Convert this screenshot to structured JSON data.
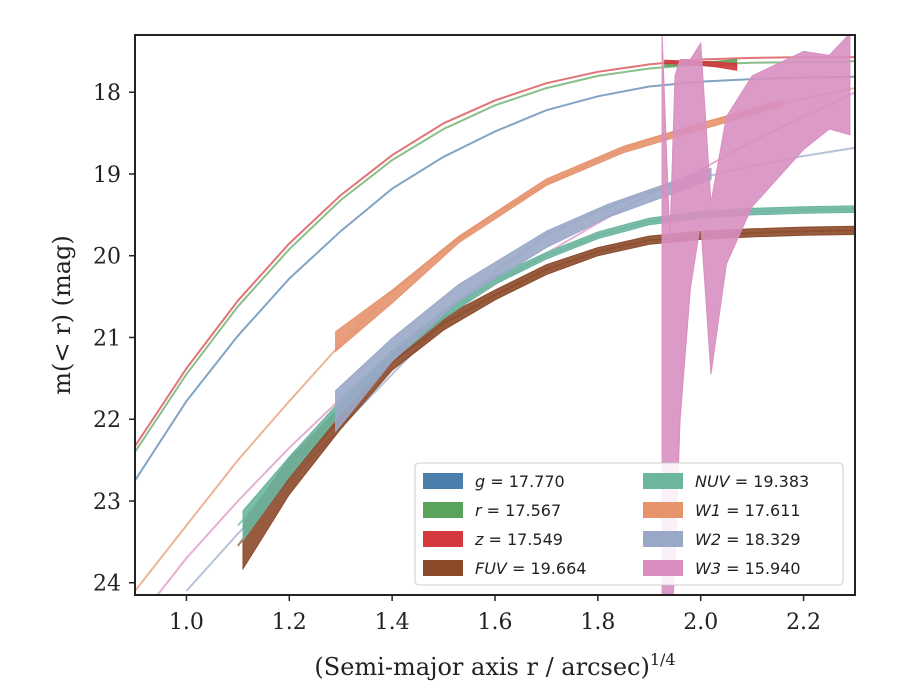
{
  "chart_data": {
    "type": "line",
    "title": "",
    "xlabel_text": "(Semi-major axis r / arcsec)",
    "xlabel_exp": "1/4",
    "ylabel_text": "m(< r) (mag)",
    "xlim": [
      0.9,
      2.3
    ],
    "ylim": [
      24.15,
      17.3
    ],
    "y_inverted": true,
    "grid": false,
    "legend_position": "lower-right",
    "xticks": [
      1.0,
      1.2,
      1.4,
      1.6,
      1.8,
      2.0,
      2.2
    ],
    "xtick_labels": [
      "1.0",
      "1.2",
      "1.4",
      "1.6",
      "1.8",
      "2.0",
      "2.2"
    ],
    "yticks": [
      18,
      19,
      20,
      21,
      22,
      23,
      24
    ],
    "ytick_labels": [
      "18",
      "19",
      "20",
      "21",
      "22",
      "23",
      "24"
    ],
    "series": [
      {
        "name": "g = 17.770",
        "color": "#4c7eab",
        "model": {
          "x": [
            0.9,
            1.0,
            1.1,
            1.2,
            1.3,
            1.4,
            1.5,
            1.6,
            1.7,
            1.8,
            1.9,
            2.0,
            2.1,
            2.2,
            2.3
          ],
          "y": [
            22.75,
            21.78,
            20.98,
            20.28,
            19.7,
            19.18,
            18.79,
            18.48,
            18.22,
            18.05,
            17.93,
            17.87,
            17.84,
            17.82,
            17.81
          ]
        },
        "data": null
      },
      {
        "name": "r = 17.567",
        "color": "#5aa35a",
        "model": {
          "x": [
            0.9,
            1.0,
            1.1,
            1.2,
            1.3,
            1.4,
            1.5,
            1.6,
            1.7,
            1.8,
            1.9,
            2.0,
            2.1,
            2.2,
            2.3
          ],
          "y": [
            22.4,
            21.45,
            20.62,
            19.92,
            19.32,
            18.83,
            18.45,
            18.16,
            17.95,
            17.8,
            17.71,
            17.66,
            17.64,
            17.63,
            17.62
          ]
        },
        "data": {
          "x": [
            1.93,
            1.98,
            2.03,
            2.07
          ],
          "y": [
            17.66,
            17.65,
            17.65,
            17.64
          ],
          "halfwidth": [
            0.02,
            0.02,
            0.03,
            0.04
          ]
        }
      },
      {
        "name": "z = 17.549",
        "color": "#d4393d",
        "model": {
          "x": [
            0.9,
            1.0,
            1.1,
            1.2,
            1.3,
            1.4,
            1.5,
            1.6,
            1.7,
            1.8,
            1.9,
            2.0,
            2.1,
            2.2,
            2.3
          ],
          "y": [
            22.33,
            21.38,
            20.55,
            19.85,
            19.26,
            18.77,
            18.38,
            18.1,
            17.89,
            17.75,
            17.66,
            17.6,
            17.58,
            17.57,
            17.57
          ]
        },
        "data": {
          "x": [
            1.93,
            1.98,
            2.03,
            2.07
          ],
          "y": [
            17.63,
            17.64,
            17.66,
            17.69
          ],
          "halfwidth": [
            0.02,
            0.02,
            0.03,
            0.04
          ]
        }
      },
      {
        "name": "FUV = 19.664",
        "color": "#8c4a2a",
        "model": {
          "x": [
            1.1,
            1.2,
            1.3,
            1.4,
            1.5,
            1.6,
            1.7,
            1.8,
            1.9,
            2.0,
            2.1,
            2.2,
            2.3
          ],
          "y": [
            23.55,
            22.7,
            21.98,
            21.3,
            20.83,
            20.48,
            20.17,
            19.95,
            19.81,
            19.75,
            19.72,
            19.7,
            19.69
          ]
        },
        "data": {
          "x": [
            1.11,
            1.2,
            1.3,
            1.4,
            1.5,
            1.6,
            1.7,
            1.8,
            1.9,
            2.0,
            2.1,
            2.2,
            2.3
          ],
          "y": [
            23.55,
            22.7,
            21.98,
            21.3,
            20.83,
            20.48,
            20.17,
            19.95,
            19.81,
            19.75,
            19.72,
            19.7,
            19.69
          ],
          "halfwidth": [
            0.28,
            0.22,
            0.14,
            0.1,
            0.08,
            0.06,
            0.06,
            0.05,
            0.05,
            0.05,
            0.05,
            0.05,
            0.05
          ]
        }
      },
      {
        "name": "NUV = 19.383",
        "color": "#6cb6a0",
        "model": {
          "x": [
            1.1,
            1.2,
            1.3,
            1.4,
            1.5,
            1.6,
            1.7,
            1.8,
            1.9,
            2.0,
            2.1,
            2.2,
            2.3
          ],
          "y": [
            23.3,
            22.58,
            21.85,
            21.22,
            20.72,
            20.3,
            20.0,
            19.75,
            19.58,
            19.5,
            19.46,
            19.44,
            19.43
          ]
        },
        "data": {
          "x": [
            1.11,
            1.2,
            1.3,
            1.4,
            1.5,
            1.6,
            1.7,
            1.8,
            1.9,
            2.0,
            2.1,
            2.2,
            2.3
          ],
          "y": [
            23.3,
            22.58,
            21.85,
            21.22,
            20.72,
            20.3,
            20.0,
            19.75,
            19.58,
            19.5,
            19.46,
            19.44,
            19.43
          ],
          "halfwidth": [
            0.18,
            0.12,
            0.08,
            0.06,
            0.05,
            0.05,
            0.04,
            0.04,
            0.04,
            0.04,
            0.04,
            0.04,
            0.04
          ]
        }
      },
      {
        "name": "W1 = 17.611",
        "color": "#e6946e",
        "model": {
          "x": [
            0.9,
            1.0,
            1.1,
            1.2,
            1.3,
            1.4,
            1.5,
            1.6,
            1.7,
            1.8,
            1.9,
            2.0,
            2.1,
            2.2,
            2.3
          ],
          "y": [
            24.1,
            23.3,
            22.5,
            21.78,
            21.08,
            20.44,
            19.92,
            19.48,
            19.12,
            18.82,
            18.58,
            18.38,
            18.22,
            18.08,
            17.95
          ]
        },
        "data": {
          "x": [
            1.29,
            1.4,
            1.53,
            1.7,
            1.85,
            2.0,
            2.16
          ],
          "y": [
            21.05,
            20.5,
            19.8,
            19.1,
            18.7,
            18.42,
            18.13
          ],
          "halfwidth": [
            0.12,
            0.08,
            0.04,
            0.04,
            0.04,
            0.04,
            0.04
          ]
        }
      },
      {
        "name": "W2 = 18.329",
        "color": "#9aa8c8",
        "model": {
          "x": [
            1.0,
            1.1,
            1.2,
            1.3,
            1.4,
            1.5,
            1.6,
            1.7,
            1.8,
            1.9,
            2.0,
            2.1,
            2.2,
            2.3
          ],
          "y": [
            24.1,
            23.4,
            22.75,
            22.1,
            21.45,
            20.8,
            20.2,
            19.75,
            19.45,
            19.22,
            19.05,
            18.9,
            18.78,
            18.68
          ]
        },
        "data": {
          "x": [
            1.29,
            1.4,
            1.53,
            1.7,
            1.82,
            2.02
          ],
          "y": [
            21.9,
            21.15,
            20.45,
            19.8,
            19.45,
            19.0
          ],
          "halfwidth": [
            0.25,
            0.14,
            0.1,
            0.1,
            0.08,
            0.07
          ]
        }
      },
      {
        "name": "W3 = 15.940",
        "color": "#d88fc0",
        "model": {
          "x": [
            0.9,
            1.0,
            1.1,
            1.2,
            1.3,
            1.4,
            1.5,
            1.6,
            1.7,
            1.8,
            1.9,
            2.0,
            2.1,
            2.2,
            2.3
          ],
          "y": [
            24.5,
            23.7,
            23.0,
            22.35,
            21.75,
            21.2,
            20.75,
            20.35,
            19.97,
            19.6,
            19.25,
            18.95,
            18.6,
            18.3,
            18.0
          ]
        },
        "data": {
          "x": [
            1.925,
            1.94,
            1.95,
            1.96,
            1.98,
            2.0,
            2.02,
            2.05,
            2.1,
            2.15,
            2.2,
            2.25,
            2.29
          ],
          "y": [
            20.8,
            22.3,
            20.8,
            19.8,
            19.0,
            18.5,
            20.4,
            19.2,
            18.6,
            18.35,
            18.1,
            18.0,
            17.9
          ],
          "halfwidth": [
            3.5,
            2.5,
            3.0,
            2.2,
            1.4,
            1.1,
            1.05,
            0.9,
            0.8,
            0.7,
            0.6,
            0.45,
            0.62
          ]
        }
      }
    ]
  }
}
